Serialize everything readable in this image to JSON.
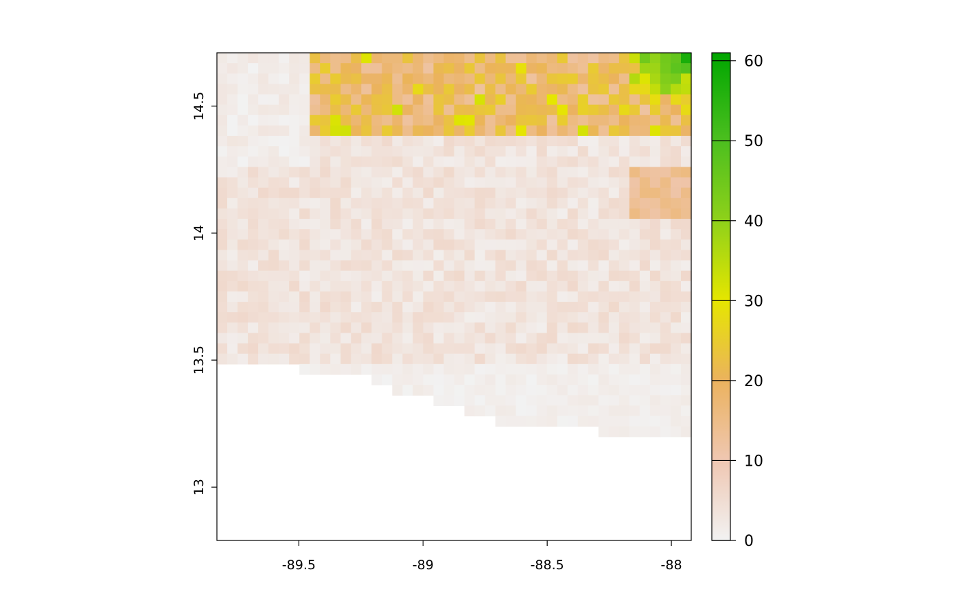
{
  "chart_data": {
    "type": "heatmap",
    "title": "",
    "xlabel": "",
    "ylabel": "",
    "xlim": [
      -89.83,
      -87.92
    ],
    "ylim": [
      12.79,
      14.71
    ],
    "x_ticks": [
      {
        "value": -89.5,
        "label": "-89.5"
      },
      {
        "value": -89.0,
        "label": "-89"
      },
      {
        "value": -88.5,
        "label": "-88.5"
      },
      {
        "value": -88.0,
        "label": "-88"
      }
    ],
    "y_ticks": [
      {
        "value": 13.0,
        "label": "13"
      },
      {
        "value": 13.5,
        "label": "13.5"
      },
      {
        "value": 14.0,
        "label": "14"
      },
      {
        "value": 14.5,
        "label": "14.5"
      }
    ],
    "grid": false,
    "raster": {
      "x_min": -89.83,
      "x_max": -87.92,
      "y_min": 12.79,
      "y_max": 14.71,
      "ncol": 46,
      "nrow": 47,
      "coast_boundary_lat": [
        [
          -89.83,
          13.5
        ],
        [
          -89.55,
          13.5
        ],
        [
          -89.5,
          13.46
        ],
        [
          -89.25,
          13.46
        ],
        [
          -89.2,
          13.42
        ],
        [
          -89.1,
          13.38
        ],
        [
          -88.95,
          13.34
        ],
        [
          -88.85,
          13.3
        ],
        [
          -88.7,
          13.26
        ],
        [
          -88.5,
          13.22
        ],
        [
          -88.3,
          13.22
        ],
        [
          -88.2,
          13.18
        ],
        [
          -88.0,
          13.18
        ],
        [
          -87.92,
          13.18
        ]
      ],
      "value_fields": {
        "north_band": {
          "lat_from": 14.38,
          "typical": [
            12,
            25
          ],
          "peak": 60,
          "peak_location": [
            -87.95,
            14.7
          ]
        },
        "mid_region": {
          "lat_from": 13.5,
          "lat_to": 14.38,
          "typical": [
            1,
            6
          ]
        },
        "west_low": {
          "lon_to": -89.45,
          "lat_from": 14.25,
          "typical": [
            0,
            3
          ]
        },
        "southern_fringe": {
          "lat_to": 13.5,
          "typical": [
            0,
            2
          ]
        }
      }
    },
    "legend": {
      "type": "colorbar",
      "placement": "right",
      "min": 0,
      "max": 61,
      "ticks": [
        {
          "value": 0,
          "label": "0"
        },
        {
          "value": 10,
          "label": "10"
        },
        {
          "value": 20,
          "label": "20"
        },
        {
          "value": 30,
          "label": "30"
        },
        {
          "value": 40,
          "label": "40"
        },
        {
          "value": 50,
          "label": "50"
        },
        {
          "value": 60,
          "label": "60"
        }
      ],
      "color_stops": [
        {
          "value": 0,
          "color": "#F2F2F2"
        },
        {
          "value": 10,
          "color": "#EFC7B2"
        },
        {
          "value": 20,
          "color": "#EBB25E"
        },
        {
          "value": 30,
          "color": "#E6E600"
        },
        {
          "value": 40,
          "color": "#8FD11A"
        },
        {
          "value": 50,
          "color": "#4CBF1F"
        },
        {
          "value": 61,
          "color": "#00A600"
        }
      ]
    }
  }
}
